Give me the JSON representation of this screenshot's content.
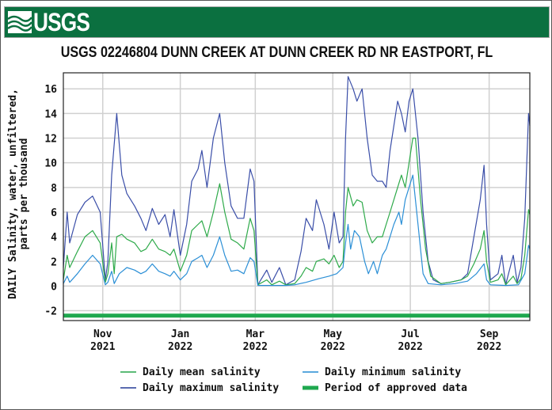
{
  "header": {
    "logo": "USGS",
    "title": "USGS 02246804 DUNN CREEK AT DUNN CREEK RD NR EASTPORT, FL"
  },
  "chart_data": {
    "type": "line",
    "ylabel": [
      "DAILY Salinity, water, unfiltered,",
      "parts per thousand"
    ],
    "ylim": [
      -2.8,
      17.3
    ],
    "xlim": [
      "2021-10-01",
      "2022-10-03"
    ],
    "yticks": [
      -2,
      0,
      2,
      4,
      6,
      8,
      10,
      12,
      14,
      16
    ],
    "xticks": [
      {
        "date": "2021-11-01",
        "label": [
          "Nov",
          "2021"
        ]
      },
      {
        "date": "2022-01-01",
        "label": [
          "Jan",
          "2022"
        ]
      },
      {
        "date": "2022-03-01",
        "label": [
          "Mar",
          "2022"
        ]
      },
      {
        "date": "2022-05-01",
        "label": [
          "May",
          "2022"
        ]
      },
      {
        "date": "2022-07-01",
        "label": [
          "Jul",
          "2022"
        ]
      },
      {
        "date": "2022-09-01",
        "label": [
          "Sep",
          "2022"
        ]
      }
    ],
    "grid": true,
    "legend_position": "bottom",
    "approved_period": {
      "name": "Period of approved data",
      "start": "2021-10-01",
      "end": "2022-10-03",
      "value": -2.4,
      "color": "#1fa84f"
    },
    "series": [
      {
        "name": "Daily maximum salinity",
        "color": "#3a4ea8",
        "points": [
          [
            "2021-10-01",
            1.5
          ],
          [
            "2021-10-04",
            6
          ],
          [
            "2021-10-06",
            3.5
          ],
          [
            "2021-10-12",
            5.8
          ],
          [
            "2021-10-18",
            6.8
          ],
          [
            "2021-10-24",
            7.3
          ],
          [
            "2021-10-30",
            6
          ],
          [
            "2021-11-03",
            0.5
          ],
          [
            "2021-11-05",
            2
          ],
          [
            "2021-11-08",
            9
          ],
          [
            "2021-11-12",
            14
          ],
          [
            "2021-11-16",
            9
          ],
          [
            "2021-11-20",
            7.5
          ],
          [
            "2021-11-26",
            6.5
          ],
          [
            "2021-12-01",
            5.5
          ],
          [
            "2021-12-05",
            4.5
          ],
          [
            "2021-12-10",
            6.3
          ],
          [
            "2021-12-15",
            5
          ],
          [
            "2021-12-20",
            5.8
          ],
          [
            "2021-12-24",
            4
          ],
          [
            "2021-12-27",
            6.2
          ],
          [
            "2022-01-01",
            2.5
          ],
          [
            "2022-01-06",
            5
          ],
          [
            "2022-01-10",
            8.5
          ],
          [
            "2022-01-15",
            9.5
          ],
          [
            "2022-01-18",
            11
          ],
          [
            "2022-01-22",
            8
          ],
          [
            "2022-01-27",
            12
          ],
          [
            "2022-02-01",
            14
          ],
          [
            "2022-02-05",
            10
          ],
          [
            "2022-02-10",
            6.5
          ],
          [
            "2022-02-15",
            5.5
          ],
          [
            "2022-02-20",
            5.5
          ],
          [
            "2022-02-25",
            9.5
          ],
          [
            "2022-02-28",
            8.5
          ],
          [
            "2022-03-03",
            0.1
          ],
          [
            "2022-03-10",
            1.3
          ],
          [
            "2022-03-14",
            0.3
          ],
          [
            "2022-03-20",
            1.5
          ],
          [
            "2022-03-25",
            0.1
          ],
          [
            "2022-04-01",
            0.5
          ],
          [
            "2022-04-06",
            2.8
          ],
          [
            "2022-04-10",
            5.5
          ],
          [
            "2022-04-15",
            4.5
          ],
          [
            "2022-04-18",
            7
          ],
          [
            "2022-04-24",
            5
          ],
          [
            "2022-04-28",
            3
          ],
          [
            "2022-05-02",
            6
          ],
          [
            "2022-05-06",
            3.5
          ],
          [
            "2022-05-09",
            4
          ],
          [
            "2022-05-11",
            12
          ],
          [
            "2022-05-13",
            17
          ],
          [
            "2022-05-17",
            16
          ],
          [
            "2022-05-20",
            15
          ],
          [
            "2022-05-24",
            16
          ],
          [
            "2022-05-28",
            12
          ],
          [
            "2022-06-01",
            9
          ],
          [
            "2022-06-05",
            8.5
          ],
          [
            "2022-06-09",
            8.5
          ],
          [
            "2022-06-12",
            8
          ],
          [
            "2022-06-15",
            11
          ],
          [
            "2022-06-18",
            13
          ],
          [
            "2022-06-21",
            15
          ],
          [
            "2022-06-24",
            14
          ],
          [
            "2022-06-27",
            12.5
          ],
          [
            "2022-06-30",
            15
          ],
          [
            "2022-07-03",
            16
          ],
          [
            "2022-07-07",
            12
          ],
          [
            "2022-07-11",
            6
          ],
          [
            "2022-07-15",
            2
          ],
          [
            "2022-07-19",
            0.5
          ],
          [
            "2022-07-25",
            0.2
          ],
          [
            "2022-08-01",
            0.3
          ],
          [
            "2022-08-10",
            0.5
          ],
          [
            "2022-08-15",
            1
          ],
          [
            "2022-08-20",
            4
          ],
          [
            "2022-08-25",
            7
          ],
          [
            "2022-08-28",
            9.8
          ],
          [
            "2022-08-30",
            5
          ],
          [
            "2022-09-02",
            0.5
          ],
          [
            "2022-09-08",
            1
          ],
          [
            "2022-09-11",
            2.5
          ],
          [
            "2022-09-14",
            0.1
          ],
          [
            "2022-09-20",
            2.5
          ],
          [
            "2022-09-23",
            0.3
          ],
          [
            "2022-09-26",
            1.5
          ],
          [
            "2022-09-29",
            5.5
          ],
          [
            "2022-10-02",
            14
          ],
          [
            "2022-10-03",
            13
          ]
        ]
      },
      {
        "name": "Daily mean salinity",
        "color": "#2eaa4a",
        "points": [
          [
            "2021-10-01",
            0.5
          ],
          [
            "2021-10-04",
            2.5
          ],
          [
            "2021-10-06",
            1.5
          ],
          [
            "2021-10-12",
            2.8
          ],
          [
            "2021-10-18",
            4
          ],
          [
            "2021-10-24",
            4.5
          ],
          [
            "2021-10-30",
            3.5
          ],
          [
            "2021-11-03",
            0.3
          ],
          [
            "2021-11-05",
            1
          ],
          [
            "2021-11-08",
            3.5
          ],
          [
            "2021-11-10",
            1
          ],
          [
            "2021-11-12",
            4
          ],
          [
            "2021-11-16",
            4.2
          ],
          [
            "2021-11-20",
            3.8
          ],
          [
            "2021-11-26",
            3.5
          ],
          [
            "2021-12-01",
            2.8
          ],
          [
            "2021-12-05",
            3
          ],
          [
            "2021-12-10",
            3.8
          ],
          [
            "2021-12-15",
            3
          ],
          [
            "2021-12-20",
            2.8
          ],
          [
            "2021-12-24",
            2.5
          ],
          [
            "2021-12-27",
            3
          ],
          [
            "2022-01-01",
            1.2
          ],
          [
            "2022-01-06",
            2.5
          ],
          [
            "2022-01-10",
            4.5
          ],
          [
            "2022-01-15",
            5
          ],
          [
            "2022-01-18",
            5.3
          ],
          [
            "2022-01-22",
            4
          ],
          [
            "2022-01-27",
            6
          ],
          [
            "2022-02-01",
            8.3
          ],
          [
            "2022-02-05",
            6
          ],
          [
            "2022-02-10",
            3.8
          ],
          [
            "2022-02-15",
            3.5
          ],
          [
            "2022-02-20",
            3
          ],
          [
            "2022-02-25",
            5.5
          ],
          [
            "2022-02-28",
            4.5
          ],
          [
            "2022-03-03",
            0.1
          ],
          [
            "2022-03-10",
            0.5
          ],
          [
            "2022-03-14",
            0.1
          ],
          [
            "2022-03-20",
            0.4
          ],
          [
            "2022-03-25",
            0.1
          ],
          [
            "2022-04-01",
            0.2
          ],
          [
            "2022-04-06",
            0.8
          ],
          [
            "2022-04-10",
            1.5
          ],
          [
            "2022-04-15",
            1.2
          ],
          [
            "2022-04-18",
            2
          ],
          [
            "2022-04-24",
            2.2
          ],
          [
            "2022-04-28",
            1.8
          ],
          [
            "2022-05-02",
            2.5
          ],
          [
            "2022-05-06",
            1.5
          ],
          [
            "2022-05-09",
            2
          ],
          [
            "2022-05-11",
            6
          ],
          [
            "2022-05-13",
            8
          ],
          [
            "2022-05-17",
            6.5
          ],
          [
            "2022-05-20",
            7
          ],
          [
            "2022-05-24",
            6.8
          ],
          [
            "2022-05-28",
            4.5
          ],
          [
            "2022-06-01",
            3.5
          ],
          [
            "2022-06-05",
            4
          ],
          [
            "2022-06-09",
            4
          ],
          [
            "2022-06-12",
            5
          ],
          [
            "2022-06-15",
            6
          ],
          [
            "2022-06-18",
            7
          ],
          [
            "2022-06-21",
            8
          ],
          [
            "2022-06-24",
            9
          ],
          [
            "2022-06-27",
            8
          ],
          [
            "2022-06-30",
            10
          ],
          [
            "2022-07-03",
            12
          ],
          [
            "2022-07-05",
            12
          ],
          [
            "2022-07-09",
            7
          ],
          [
            "2022-07-13",
            3
          ],
          [
            "2022-07-17",
            0.8
          ],
          [
            "2022-07-25",
            0.2
          ],
          [
            "2022-08-01",
            0.3
          ],
          [
            "2022-08-10",
            0.5
          ],
          [
            "2022-08-15",
            0.8
          ],
          [
            "2022-08-20",
            1.8
          ],
          [
            "2022-08-25",
            3
          ],
          [
            "2022-08-28",
            4.5
          ],
          [
            "2022-08-30",
            2
          ],
          [
            "2022-09-02",
            0.3
          ],
          [
            "2022-09-08",
            0.5
          ],
          [
            "2022-09-11",
            1
          ],
          [
            "2022-09-14",
            0.1
          ],
          [
            "2022-09-20",
            0.8
          ],
          [
            "2022-09-23",
            0.2
          ],
          [
            "2022-09-26",
            0.6
          ],
          [
            "2022-09-29",
            2.5
          ],
          [
            "2022-10-02",
            6.2
          ],
          [
            "2022-10-03",
            5.8
          ]
        ]
      },
      {
        "name": "Daily minimum salinity",
        "color": "#2b8fd6",
        "points": [
          [
            "2021-10-01",
            0.2
          ],
          [
            "2021-10-04",
            0.8
          ],
          [
            "2021-10-06",
            0.3
          ],
          [
            "2021-10-12",
            1
          ],
          [
            "2021-10-18",
            1.8
          ],
          [
            "2021-10-24",
            2.5
          ],
          [
            "2021-10-30",
            1.8
          ],
          [
            "2021-11-03",
            0.1
          ],
          [
            "2021-11-05",
            0.3
          ],
          [
            "2021-11-08",
            1.2
          ],
          [
            "2021-11-10",
            0.2
          ],
          [
            "2021-11-14",
            1
          ],
          [
            "2021-11-20",
            1.5
          ],
          [
            "2021-11-26",
            1.3
          ],
          [
            "2021-12-01",
            1
          ],
          [
            "2021-12-05",
            1.2
          ],
          [
            "2021-12-10",
            1.8
          ],
          [
            "2021-12-15",
            1.2
          ],
          [
            "2021-12-20",
            1
          ],
          [
            "2021-12-24",
            0.8
          ],
          [
            "2021-12-27",
            1.2
          ],
          [
            "2022-01-01",
            0.5
          ],
          [
            "2022-01-06",
            1
          ],
          [
            "2022-01-10",
            2
          ],
          [
            "2022-01-15",
            2.3
          ],
          [
            "2022-01-18",
            2.5
          ],
          [
            "2022-01-22",
            1.5
          ],
          [
            "2022-01-27",
            2.5
          ],
          [
            "2022-02-01",
            4
          ],
          [
            "2022-02-05",
            2.5
          ],
          [
            "2022-02-10",
            1.2
          ],
          [
            "2022-02-15",
            1.3
          ],
          [
            "2022-02-20",
            1
          ],
          [
            "2022-02-25",
            2.3
          ],
          [
            "2022-02-28",
            2
          ],
          [
            "2022-03-03",
            0.05
          ],
          [
            "2022-03-14",
            0.05
          ],
          [
            "2022-03-25",
            0.05
          ],
          [
            "2022-04-01",
            0.1
          ],
          [
            "2022-04-10",
            0.3
          ],
          [
            "2022-04-20",
            0.6
          ],
          [
            "2022-04-28",
            0.8
          ],
          [
            "2022-05-04",
            1
          ],
          [
            "2022-05-09",
            1.5
          ],
          [
            "2022-05-11",
            3.5
          ],
          [
            "2022-05-13",
            5
          ],
          [
            "2022-05-15",
            3
          ],
          [
            "2022-05-18",
            4.5
          ],
          [
            "2022-05-22",
            4
          ],
          [
            "2022-05-26",
            2
          ],
          [
            "2022-05-29",
            1
          ],
          [
            "2022-06-02",
            2
          ],
          [
            "2022-06-05",
            1
          ],
          [
            "2022-06-09",
            2.5
          ],
          [
            "2022-06-12",
            3
          ],
          [
            "2022-06-15",
            4
          ],
          [
            "2022-06-18",
            5
          ],
          [
            "2022-06-22",
            6
          ],
          [
            "2022-06-24",
            5
          ],
          [
            "2022-06-27",
            7
          ],
          [
            "2022-06-30",
            8
          ],
          [
            "2022-07-03",
            9
          ],
          [
            "2022-07-07",
            5
          ],
          [
            "2022-07-11",
            1
          ],
          [
            "2022-07-15",
            0.2
          ],
          [
            "2022-07-25",
            0.1
          ],
          [
            "2022-08-05",
            0.2
          ],
          [
            "2022-08-15",
            0.4
          ],
          [
            "2022-08-22",
            1
          ],
          [
            "2022-08-28",
            1.8
          ],
          [
            "2022-08-30",
            0.5
          ],
          [
            "2022-09-02",
            0.1
          ],
          [
            "2022-09-14",
            0.05
          ],
          [
            "2022-09-24",
            0.1
          ],
          [
            "2022-09-29",
            1
          ],
          [
            "2022-10-02",
            3.3
          ],
          [
            "2022-10-03",
            3
          ]
        ]
      }
    ],
    "legend": [
      {
        "name": "Daily mean salinity",
        "color": "#5cbb77"
      },
      {
        "name": "Daily minimum salinity",
        "color": "#5aa8de"
      },
      {
        "name": "Daily maximum salinity",
        "color": "#5a6bb0"
      },
      {
        "name": "Period of approved data",
        "color": "#1fa84f"
      }
    ]
  }
}
